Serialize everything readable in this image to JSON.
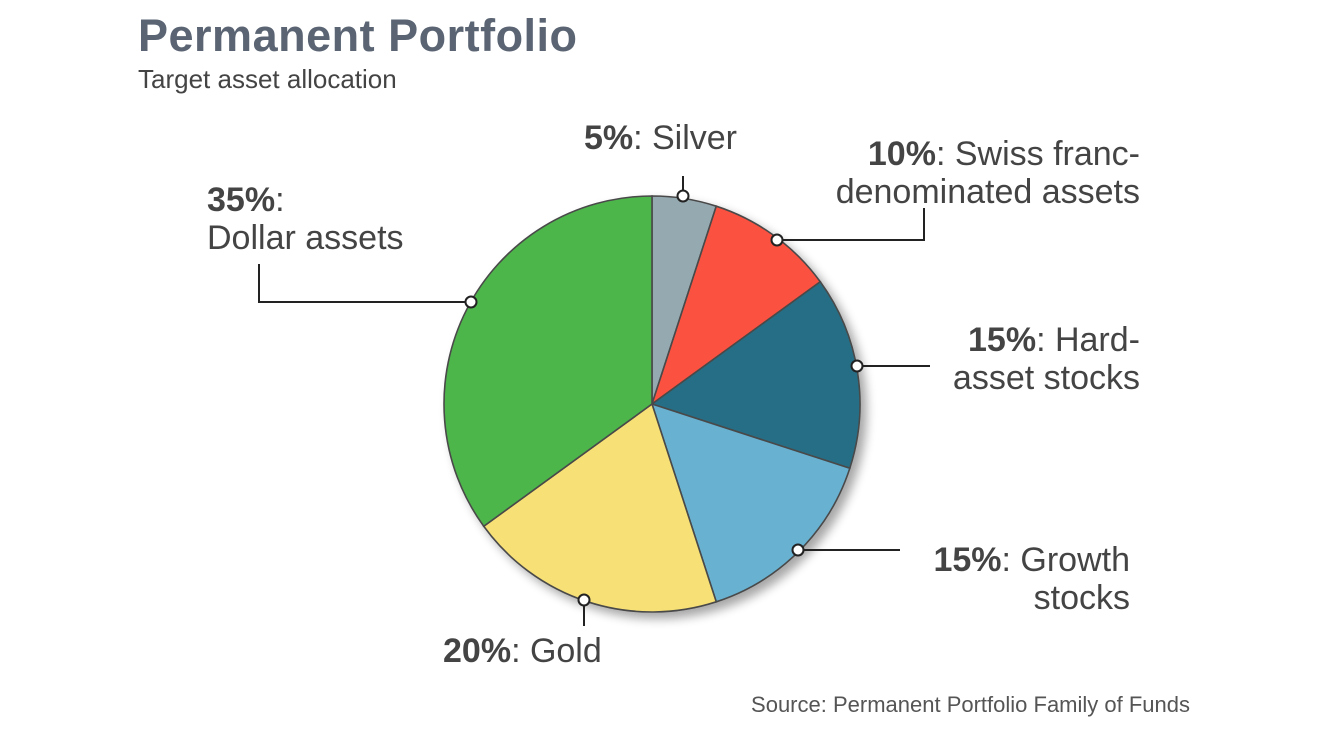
{
  "title": "Permanent Portfolio",
  "subtitle": "Target asset allocation",
  "source": "Source: Permanent Portfolio Family of Funds",
  "chart_data": {
    "type": "pie",
    "title": "Permanent Portfolio",
    "subtitle": "Target asset allocation",
    "start_angle_deg": 0,
    "direction": "clockwise",
    "slices": [
      {
        "pct_label": "5%",
        "rest": ": Silver",
        "lines": [
          ": Silver"
        ],
        "value": 5,
        "color": "#95a9b0",
        "label_position": "top"
      },
      {
        "pct_label": "10%",
        "rest": ": Swiss franc-denominated assets",
        "lines": [
          ": Swiss franc-",
          "denominated assets"
        ],
        "value": 10,
        "color": "#fb513f",
        "label_position": "top-right"
      },
      {
        "pct_label": "15%",
        "rest": ": Hard-asset stocks",
        "lines": [
          ": Hard-",
          "asset stocks"
        ],
        "value": 15,
        "color": "#276e85",
        "label_position": "right"
      },
      {
        "pct_label": "15%",
        "rest": ": Growth stocks",
        "lines": [
          ": Growth",
          "stocks"
        ],
        "value": 15,
        "color": "#67b1d1",
        "label_position": "bottom-right"
      },
      {
        "pct_label": "20%",
        "rest": ": Gold",
        "lines": [
          ": Gold"
        ],
        "value": 20,
        "color": "#f7e075",
        "label_position": "bottom"
      },
      {
        "pct_label": "35%",
        "rest": ": Dollar assets",
        "lines": [
          ":",
          "Dollar assets"
        ],
        "value": 35,
        "color": "#4eb64c",
        "label_position": "top-left"
      }
    ]
  }
}
